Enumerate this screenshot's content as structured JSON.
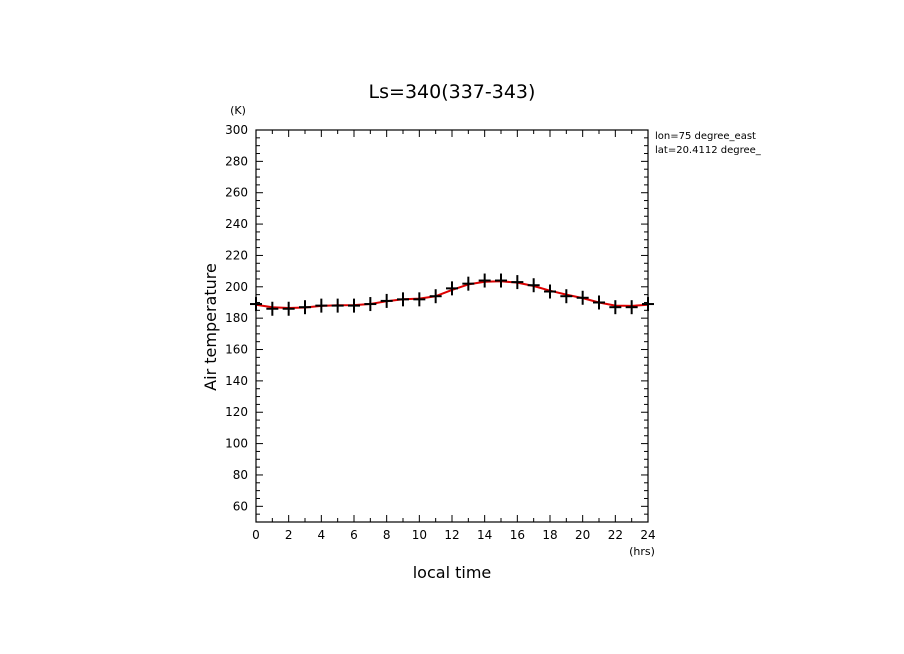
{
  "chart_data": {
    "type": "line",
    "title": "Ls=340(337-343)",
    "xlabel": "local time",
    "ylabel": "Air temperature",
    "x_unit": "(hrs)",
    "y_unit": "(K)",
    "xlim": [
      0,
      24
    ],
    "ylim": [
      50,
      300
    ],
    "x_ticks": [
      "0",
      "2",
      "4",
      "6",
      "8",
      "10",
      "12",
      "14",
      "16",
      "18",
      "20",
      "22",
      "24"
    ],
    "y_ticks": [
      "60",
      "80",
      "100",
      "120",
      "140",
      "160",
      "180",
      "200",
      "220",
      "240",
      "260",
      "280",
      "300"
    ],
    "annotations": [
      "lon=75 degree_east",
      "lat=20.4112 degree_"
    ],
    "grid": false,
    "series": [
      {
        "style": "markers",
        "marker": "plus",
        "color": "#000000",
        "x": [
          0,
          1,
          2,
          3,
          4,
          5,
          6,
          7,
          8,
          9,
          10,
          11,
          12,
          13,
          14,
          15,
          16,
          17,
          18,
          19,
          20,
          21,
          22,
          23,
          24
        ],
        "y": [
          189,
          186,
          186,
          187,
          188,
          188,
          188,
          189,
          191,
          192,
          192,
          194,
          199,
          202,
          204,
          204,
          203,
          201,
          197,
          194,
          193,
          190,
          187,
          187,
          189
        ]
      },
      {
        "style": "line",
        "color": "#dd0000",
        "x": [
          0,
          1,
          2,
          3,
          4,
          5,
          6,
          7,
          8,
          9,
          10,
          11,
          12,
          13,
          14,
          15,
          16,
          17,
          18,
          19,
          20,
          21,
          22,
          23,
          24
        ],
        "y": [
          188.5,
          187,
          186.5,
          186.8,
          187.8,
          188.2,
          188.3,
          189,
          190.8,
          192,
          192.5,
          194,
          198,
          201.5,
          203.2,
          203.5,
          202.7,
          200.5,
          197.5,
          195,
          192.8,
          190,
          188,
          187.8,
          188.5
        ]
      }
    ]
  }
}
